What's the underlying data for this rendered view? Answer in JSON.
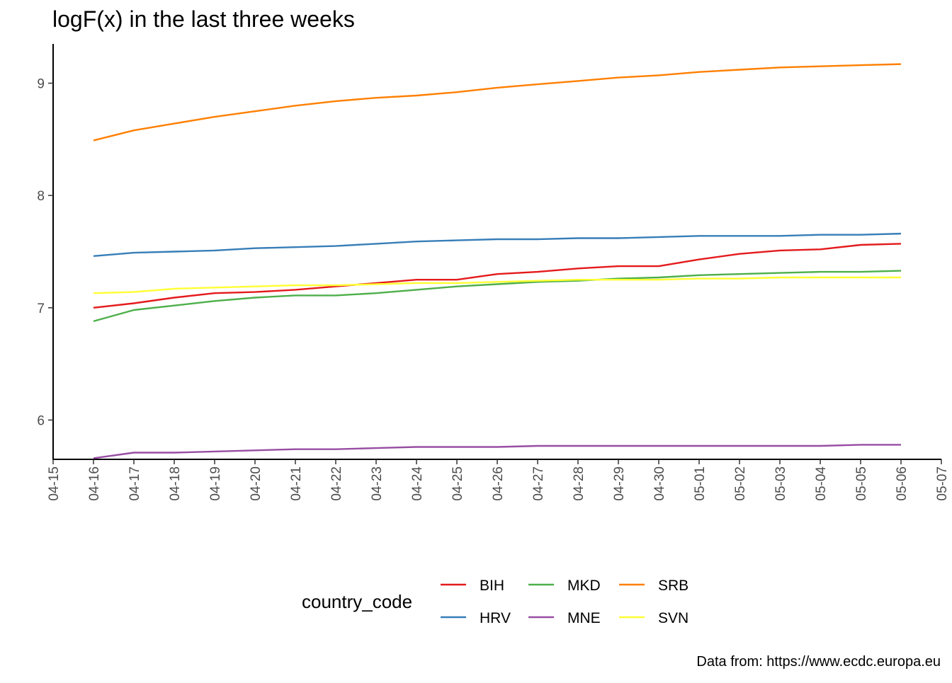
{
  "chart_data": {
    "type": "line",
    "title": "logF(x) in the last three weeks",
    "xlabel": "",
    "ylabel": "",
    "caption": "Data from: https://www.ecdc.europa.eu",
    "x_range": [
      "04-15",
      "05-07"
    ],
    "ylim": [
      5.65,
      9.35
    ],
    "y_ticks": [
      6,
      7,
      8,
      9
    ],
    "x_tick_labels": [
      "04-15",
      "04-16",
      "04-17",
      "04-18",
      "04-19",
      "04-20",
      "04-21",
      "04-22",
      "04-23",
      "04-24",
      "04-25",
      "04-26",
      "04-27",
      "04-28",
      "04-29",
      "04-30",
      "05-01",
      "05-02",
      "05-03",
      "05-04",
      "05-05",
      "05-06",
      "05-07"
    ],
    "x": [
      "04-16",
      "04-17",
      "04-18",
      "04-19",
      "04-20",
      "04-21",
      "04-22",
      "04-23",
      "04-24",
      "04-25",
      "04-26",
      "04-27",
      "04-28",
      "04-29",
      "04-30",
      "05-01",
      "05-02",
      "05-03",
      "05-04",
      "05-05",
      "05-06"
    ],
    "grid": false,
    "legend": {
      "title": "country_code",
      "placement": "bottom"
    },
    "series": [
      {
        "name": "BIH",
        "color": "#E41A1C",
        "values": [
          7.0,
          7.04,
          7.09,
          7.13,
          7.14,
          7.16,
          7.19,
          7.22,
          7.25,
          7.25,
          7.3,
          7.32,
          7.35,
          7.37,
          7.37,
          7.43,
          7.48,
          7.51,
          7.52,
          7.56,
          7.57
        ]
      },
      {
        "name": "HRV",
        "color": "#377EB8",
        "values": [
          7.46,
          7.49,
          7.5,
          7.51,
          7.53,
          7.54,
          7.55,
          7.57,
          7.59,
          7.6,
          7.61,
          7.61,
          7.62,
          7.62,
          7.63,
          7.64,
          7.64,
          7.64,
          7.65,
          7.65,
          7.66
        ]
      },
      {
        "name": "MKD",
        "color": "#4DAF4A",
        "values": [
          6.88,
          6.98,
          7.02,
          7.06,
          7.09,
          7.11,
          7.11,
          7.13,
          7.16,
          7.19,
          7.21,
          7.23,
          7.24,
          7.26,
          7.27,
          7.29,
          7.3,
          7.31,
          7.32,
          7.32,
          7.33
        ]
      },
      {
        "name": "MNE",
        "color": "#984EA3",
        "values": [
          5.66,
          5.71,
          5.71,
          5.72,
          5.73,
          5.74,
          5.74,
          5.75,
          5.76,
          5.76,
          5.76,
          5.77,
          5.77,
          5.77,
          5.77,
          5.77,
          5.77,
          5.77,
          5.77,
          5.78,
          5.78
        ]
      },
      {
        "name": "SRB",
        "color": "#FF7F00",
        "values": [
          8.49,
          8.58,
          8.64,
          8.7,
          8.75,
          8.8,
          8.84,
          8.87,
          8.89,
          8.92,
          8.96,
          8.99,
          9.02,
          9.05,
          9.07,
          9.1,
          9.12,
          9.14,
          9.15,
          9.16,
          9.17
        ]
      },
      {
        "name": "SVN",
        "color": "#FFFF33",
        "values": [
          7.13,
          7.14,
          7.17,
          7.18,
          7.19,
          7.2,
          7.2,
          7.21,
          7.22,
          7.22,
          7.23,
          7.24,
          7.25,
          7.25,
          7.25,
          7.26,
          7.26,
          7.27,
          7.27,
          7.27,
          7.27
        ]
      }
    ]
  }
}
